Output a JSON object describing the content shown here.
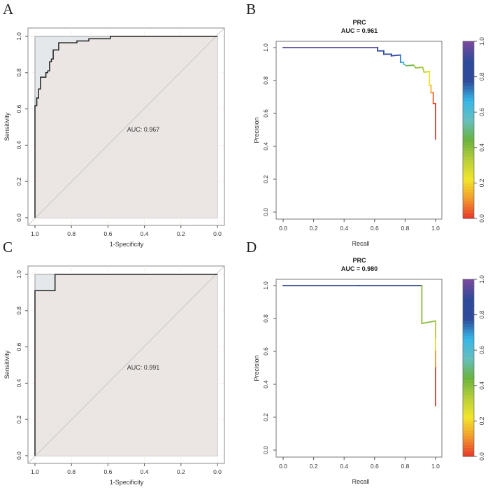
{
  "chart_data": [
    {
      "panel": "A",
      "type": "line",
      "xlabel": "1-Specificity",
      "ylabel": "Sensitivity",
      "xlim": [
        1.0,
        0.0
      ],
      "ylim": [
        0.0,
        1.0
      ],
      "xticks": [
        "1.0",
        "0.8",
        "0.6",
        "0.4",
        "0.2",
        "0.0"
      ],
      "yticks": [
        "0.0",
        "0.2",
        "0.4",
        "0.6",
        "0.8",
        "1.0"
      ],
      "annotation": "AUC: 0.967",
      "grid": true,
      "points": [
        [
          1,
          0
        ],
        [
          1,
          0.618
        ],
        [
          0.99,
          0.618
        ],
        [
          0.99,
          0.66
        ],
        [
          0.98,
          0.66
        ],
        [
          0.98,
          0.71
        ],
        [
          0.97,
          0.71
        ],
        [
          0.97,
          0.775
        ],
        [
          0.94,
          0.775
        ],
        [
          0.94,
          0.8
        ],
        [
          0.93,
          0.8
        ],
        [
          0.93,
          0.81
        ],
        [
          0.92,
          0.81
        ],
        [
          0.92,
          0.86
        ],
        [
          0.91,
          0.86
        ],
        [
          0.91,
          0.875
        ],
        [
          0.9,
          0.875
        ],
        [
          0.9,
          0.925
        ],
        [
          0.87,
          0.925
        ],
        [
          0.87,
          0.965
        ],
        [
          0.77,
          0.965
        ],
        [
          0.77,
          0.975
        ],
        [
          0.705,
          0.975
        ],
        [
          0.705,
          0.987
        ],
        [
          0.587,
          0.987
        ],
        [
          0.587,
          1
        ],
        [
          0,
          1
        ]
      ]
    },
    {
      "panel": "B",
      "type": "line",
      "title": "PRC",
      "subtitle": "AUC = 0.961",
      "xlabel": "Recall",
      "ylabel": "Precision",
      "xlim": [
        0,
        1
      ],
      "ylim": [
        0,
        1
      ],
      "xticks": [
        "0.0",
        "0.2",
        "0.4",
        "0.6",
        "0.8",
        "1.0"
      ],
      "yticks": [
        "0.0",
        "0.2",
        "0.4",
        "0.6",
        "0.8",
        "1.0"
      ],
      "colorbar_ticks": [
        "0.0",
        "0.2",
        "0.4",
        "0.6",
        "0.8",
        "1.0"
      ],
      "points": [
        [
          0,
          1,
          1
        ],
        [
          0.62,
          1,
          0.95
        ],
        [
          0.62,
          0.98,
          0.85
        ],
        [
          0.66,
          0.98,
          0.82
        ],
        [
          0.66,
          0.96,
          0.8
        ],
        [
          0.71,
          0.96,
          0.8
        ],
        [
          0.71,
          0.95,
          0.8
        ],
        [
          0.77,
          0.955,
          0.78
        ],
        [
          0.77,
          0.91,
          0.72
        ],
        [
          0.79,
          0.91,
          0.68
        ],
        [
          0.79,
          0.9,
          0.62
        ],
        [
          0.81,
          0.89,
          0.55
        ],
        [
          0.855,
          0.893,
          0.45
        ],
        [
          0.87,
          0.877,
          0.4
        ],
        [
          0.915,
          0.88,
          0.38
        ],
        [
          0.925,
          0.85,
          0.35
        ],
        [
          0.96,
          0.855,
          0.3
        ],
        [
          0.96,
          0.77,
          0.22
        ],
        [
          0.97,
          0.77,
          0.2
        ],
        [
          0.97,
          0.726,
          0.15
        ],
        [
          0.985,
          0.726,
          0.1
        ],
        [
          0.985,
          0.66,
          0.05
        ],
        [
          1,
          0.66,
          0.02
        ],
        [
          1,
          0.444,
          0
        ]
      ]
    },
    {
      "panel": "C",
      "type": "line",
      "xlabel": "1-Specificity",
      "ylabel": "Sensitivity",
      "xlim": [
        1.0,
        0.0
      ],
      "ylim": [
        0.0,
        1.0
      ],
      "xticks": [
        "1.0",
        "0.8",
        "0.6",
        "0.4",
        "0.2",
        "0.0"
      ],
      "yticks": [
        "0.0",
        "0.2",
        "0.4",
        "0.6",
        "0.8",
        "1.0"
      ],
      "annotation": "AUC: 0.991",
      "grid": true,
      "points": [
        [
          1,
          0
        ],
        [
          1,
          0.91
        ],
        [
          0.89,
          0.91
        ],
        [
          0.89,
          1
        ],
        [
          0,
          1
        ]
      ]
    },
    {
      "panel": "D",
      "type": "line",
      "title": "PRC",
      "subtitle": "AUC = 0.980",
      "xlabel": "Recall",
      "ylabel": "Precision",
      "xlim": [
        0,
        1
      ],
      "ylim": [
        0,
        1
      ],
      "xticks": [
        "0.0",
        "0.2",
        "0.4",
        "0.6",
        "0.8",
        "1.0"
      ],
      "yticks": [
        "0.0",
        "0.2",
        "0.4",
        "0.6",
        "0.8",
        "1.0"
      ],
      "colorbar_ticks": [
        "0.0",
        "0.2",
        "0.4",
        "0.6",
        "0.8",
        "1.0"
      ],
      "points": [
        [
          0,
          1,
          1
        ],
        [
          0.5,
          1,
          0.85
        ],
        [
          0.91,
          1,
          0.8
        ],
        [
          0.91,
          0.77,
          0.4
        ],
        [
          1,
          0.785,
          0.4
        ],
        [
          1,
          0.68,
          0.35
        ],
        [
          1,
          0.6,
          0.2
        ],
        [
          1,
          0.5,
          0.1
        ],
        [
          1,
          0.27,
          0
        ]
      ]
    }
  ],
  "colors": {
    "roc_line": "#222222",
    "diagonal": "#bbbbbb",
    "area_under": "#ebe6e4",
    "area_above": "#e5e8ea",
    "colormap": [
      "#e8352a",
      "#f39a2a",
      "#f2e62b",
      "#b8cf38",
      "#6ab33e",
      "#64bfc0",
      "#35b6e8",
      "#2f4a9a",
      "#2f4a9a",
      "#7d4a9e"
    ]
  }
}
